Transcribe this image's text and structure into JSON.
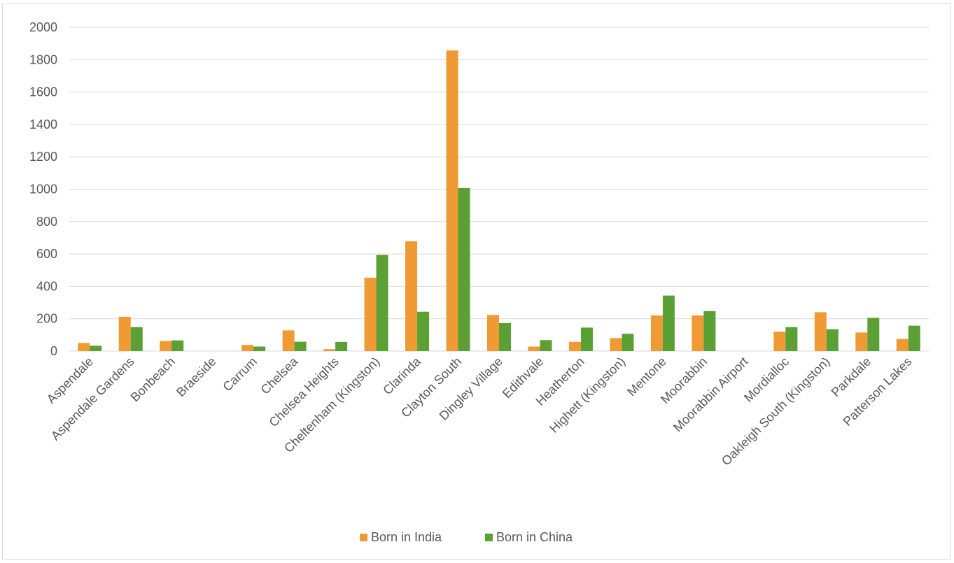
{
  "chart_data": {
    "type": "bar",
    "title": "",
    "xlabel": "",
    "ylabel": "",
    "ylim": [
      0,
      2000
    ],
    "yticks": [
      0,
      200,
      400,
      600,
      800,
      1000,
      1200,
      1400,
      1600,
      1800,
      2000
    ],
    "grid": true,
    "legend_position": "bottom",
    "categories": [
      "Aspendale",
      "Aspendale Gardens",
      "Bonbeach",
      "Braeside",
      "Carrum",
      "Chelsea",
      "Chelsea Heights",
      "Cheltenham (Kingston)",
      "Clarinda",
      "Clayton South",
      "Dingley Village",
      "Edithvale",
      "Heatherton",
      "Highett (Kingston)",
      "Mentone",
      "Moorabbin",
      "Moorabbin Airport",
      "Mordialloc",
      "Oakleigh South (Kingston)",
      "Parkdale",
      "Patterson Lakes"
    ],
    "series": [
      {
        "name": "Born in India",
        "color": "#f09a33",
        "values": [
          50,
          212,
          62,
          0,
          38,
          128,
          12,
          453,
          678,
          1857,
          223,
          28,
          57,
          80,
          220,
          220,
          0,
          120,
          240,
          115,
          75
        ]
      },
      {
        "name": "Born in China",
        "color": "#5aa035",
        "values": [
          33,
          148,
          66,
          0,
          28,
          58,
          57,
          594,
          243,
          1007,
          173,
          68,
          145,
          107,
          343,
          247,
          0,
          148,
          135,
          205,
          157
        ]
      }
    ]
  }
}
